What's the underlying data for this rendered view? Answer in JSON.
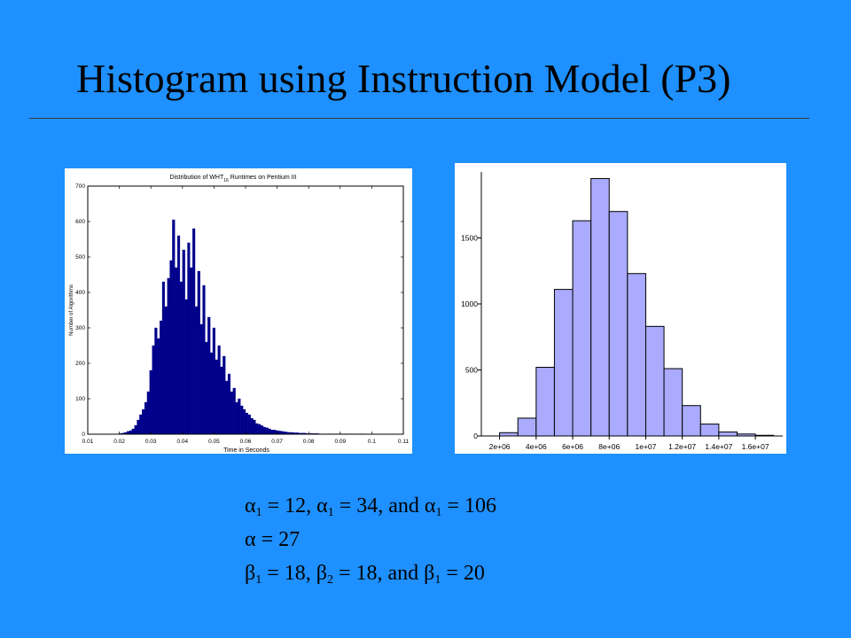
{
  "slide": {
    "title": "Histogram using Instruction Model (P3)"
  },
  "caption": {
    "line1": {
      "s1": "α",
      "sub1": "1",
      "t1": " = 12, ",
      "s2": "α",
      "sub2": "1",
      "t2": " = 34, and ",
      "s3": "α",
      "sub3": "1",
      "t3": " = 106"
    },
    "line2": {
      "s1": "α",
      "t1": " = 27"
    },
    "line3": {
      "s1": "β",
      "sub1": "1",
      "t1": " = 18, ",
      "s2": "β",
      "sub2": "2",
      "t2": " = 18,  and ",
      "s3": "β",
      "sub3": "1",
      "t3": " = 20"
    }
  },
  "colors": {
    "background": "#1E90FF",
    "left_bars": "#00008B",
    "right_bars": "#AAAAFF"
  },
  "chart_data": [
    {
      "type": "bar",
      "title_main": "Distribution of WHT",
      "title_sub": "16",
      "title_rest": " Runtimes on Pentium III",
      "xlabel": "Time in Seconds",
      "ylabel": "Number of Algorithms",
      "xlim": [
        0.01,
        0.11
      ],
      "ylim": [
        0,
        700
      ],
      "xticks": [
        "0.01",
        "0.02",
        "0.03",
        "0.04",
        "0.05",
        "0.06",
        "0.07",
        "0.08",
        "0.09",
        "0.1",
        "0.11"
      ],
      "yticks": [
        "0",
        "100",
        "200",
        "300",
        "400",
        "500",
        "600",
        "700"
      ],
      "bin_start": 0.02,
      "bin_width": 0.0008,
      "values": [
        2,
        3,
        5,
        8,
        10,
        15,
        25,
        40,
        55,
        70,
        90,
        120,
        180,
        250,
        300,
        270,
        320,
        430,
        360,
        440,
        490,
        605,
        470,
        560,
        430,
        520,
        380,
        540,
        470,
        580,
        360,
        460,
        310,
        420,
        260,
        330,
        230,
        300,
        210,
        250,
        190,
        220,
        150,
        170,
        120,
        130,
        90,
        100,
        80,
        70,
        60,
        55,
        45,
        40,
        30,
        28,
        24,
        20,
        18,
        15,
        12,
        12,
        10,
        9,
        8,
        7,
        6,
        5,
        5,
        4,
        4,
        3,
        3,
        3,
        2,
        2,
        2,
        2,
        2,
        1,
        1,
        1,
        1,
        1,
        1,
        1,
        1,
        1,
        1,
        1,
        1,
        1,
        1,
        1,
        1,
        1,
        1
      ]
    },
    {
      "type": "bar",
      "xlim": [
        1000000,
        17500000
      ],
      "ylim": [
        0,
        2000
      ],
      "xticks": [
        "2e+06",
        "4e+06",
        "6e+06",
        "8e+06",
        "1e+07",
        "1.2e+07",
        "1.4e+07",
        "1.6e+07"
      ],
      "yticks": [
        "0",
        "500",
        "1000",
        "1500"
      ],
      "bin_edges": [
        2000000,
        3000000,
        4000000,
        5000000,
        6000000,
        7000000,
        8000000,
        9000000,
        10000000,
        11000000,
        12000000,
        13000000,
        14000000,
        15000000,
        16000000,
        17000000
      ],
      "values": [
        25,
        135,
        520,
        1110,
        1630,
        1950,
        1700,
        1230,
        830,
        510,
        230,
        90,
        30,
        15,
        5
      ]
    }
  ]
}
